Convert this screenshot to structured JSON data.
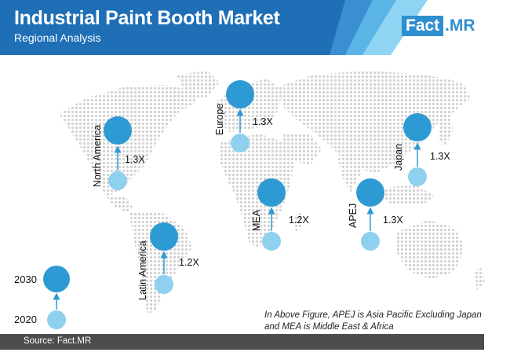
{
  "header": {
    "title": "Industrial Paint Booth Market",
    "subtitle": "Regional Analysis"
  },
  "logo": {
    "part1": "Fact",
    "part2": ".MR"
  },
  "regions": [
    {
      "name": "North America",
      "multiplier": "1.3X"
    },
    {
      "name": "Europe",
      "multiplier": "1.3X"
    },
    {
      "name": "Japan",
      "multiplier": "1.3X"
    },
    {
      "name": "MEA",
      "multiplier": "1.2X"
    },
    {
      "name": "APEJ",
      "multiplier": "1.3X"
    },
    {
      "name": "Latin America",
      "multiplier": "1.2X"
    }
  ],
  "legend": {
    "large_label": "2030",
    "small_label": "2020"
  },
  "note": "In Above Figure, APEJ is Asia Pacific Excluding Japan and MEA is Middle East & Africa",
  "source": "Source: Fact.MR",
  "colors": {
    "header_dark": "#1f6fb6",
    "header_light": "#6cc4ea",
    "circle_2030": "#2e9ad4",
    "circle_2020": "#8fd0ee",
    "map_dots": "#d4d4d4",
    "footer": "#4d4d4d"
  }
}
